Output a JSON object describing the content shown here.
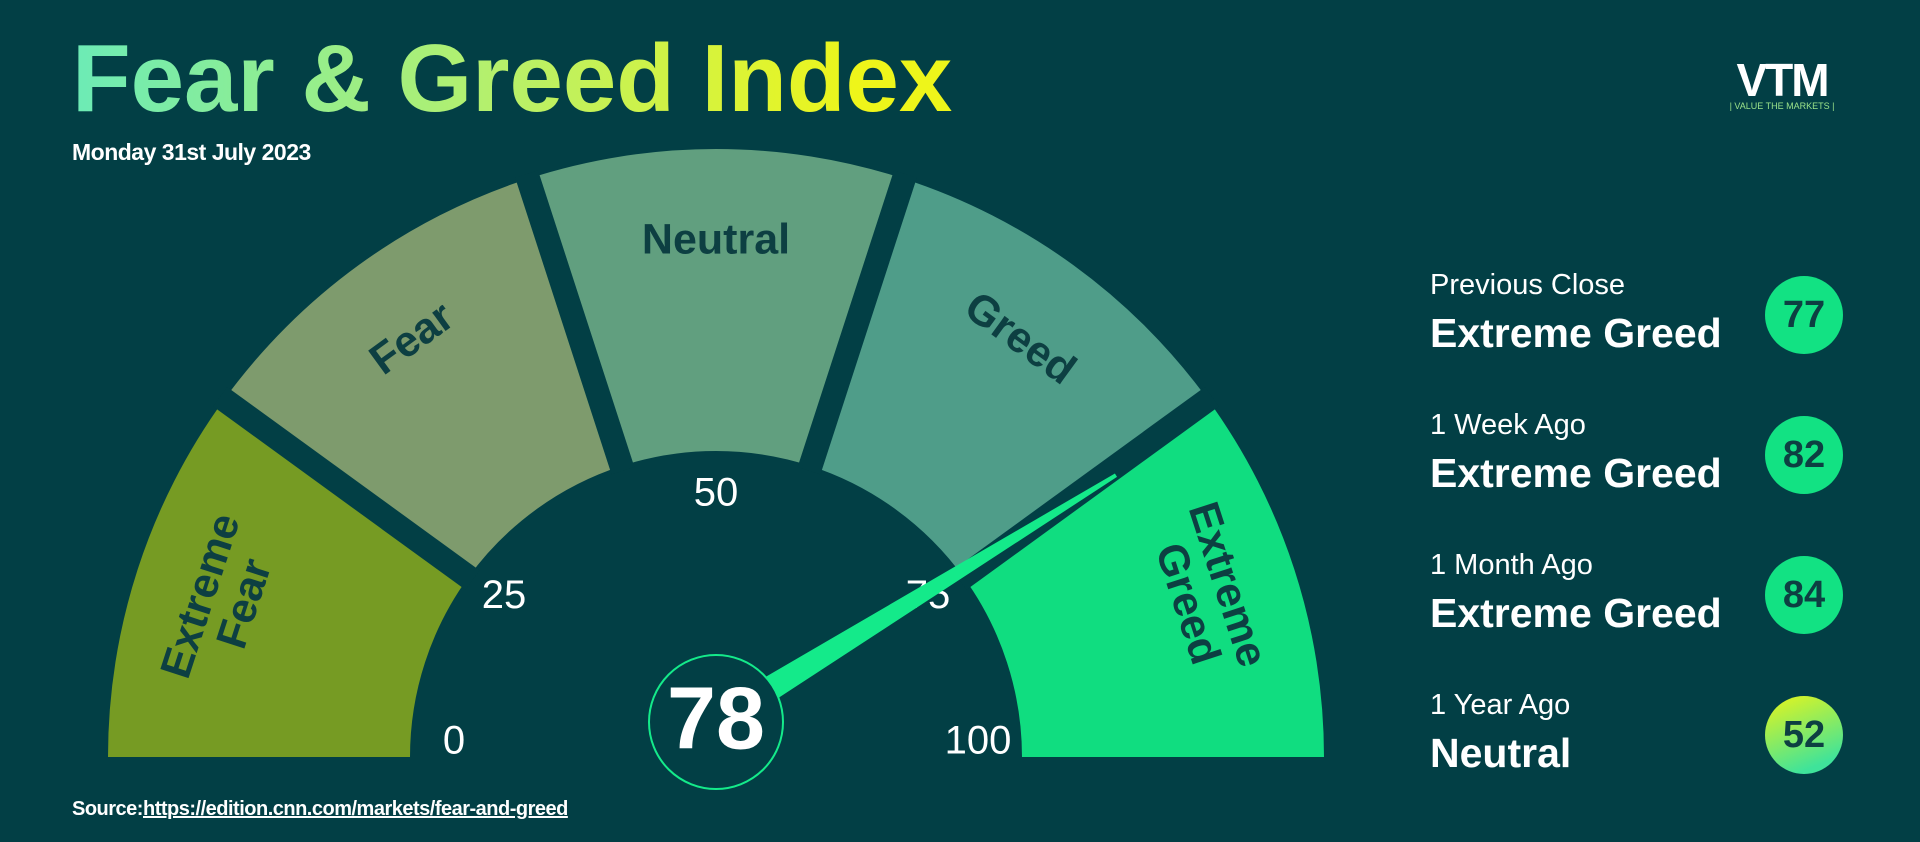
{
  "header": {
    "title": "Fear & Greed Index",
    "subtitle": "Monday 31st July 2023"
  },
  "logo": {
    "text": "VTM",
    "tagline": "| VALUE THE MARKETS |"
  },
  "chart_data": {
    "type": "gauge",
    "value": 78,
    "ticks": [
      0,
      25,
      50,
      75,
      100
    ],
    "segments": [
      {
        "label": "Extreme Fear",
        "color": "#769b23"
      },
      {
        "label": "Fear",
        "color": "#7e9b6d"
      },
      {
        "label": "Neutral",
        "color": "#619f7f"
      },
      {
        "label": "Greed",
        "color": "#4f9d89"
      },
      {
        "label": "Extreme Greed",
        "color": "#10dd80"
      }
    ],
    "needle_color": "#14ea8a"
  },
  "history": [
    {
      "label": "Previous Close",
      "status": "Extreme Greed",
      "value": 77,
      "colors": [
        "#12e283",
        "#12e283"
      ]
    },
    {
      "label": "1 Week Ago",
      "status": "Extreme Greed",
      "value": 82,
      "colors": [
        "#12e283",
        "#12e283"
      ]
    },
    {
      "label": "1 Month Ago",
      "status": "Extreme Greed",
      "value": 84,
      "colors": [
        "#12e283",
        "#12e283"
      ]
    },
    {
      "label": "1 Year Ago",
      "status": "Neutral",
      "value": 52,
      "colors": [
        "#e8f51a",
        "#3fe39a"
      ]
    }
  ],
  "source": {
    "label": "Source:",
    "url": "https://edition.cnn.com/markets/fear-and-greed"
  }
}
